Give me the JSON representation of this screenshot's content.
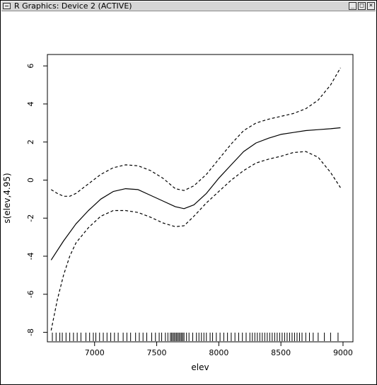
{
  "window": {
    "title": "R Graphics: Device 2 (ACTIVE)",
    "buttons": {
      "minimize": "_",
      "maximize": "□",
      "close": "×"
    }
  },
  "chart_data": {
    "type": "line",
    "title": "",
    "xlabel": "elev",
    "ylabel": "s(elev,4.95)",
    "xlim": [
      6620,
      9080
    ],
    "ylim": [
      -8.5,
      6.6
    ],
    "xticks": [
      7000,
      7500,
      8000,
      8500,
      9000
    ],
    "yticks": [
      -8,
      -6,
      -4,
      -2,
      0,
      2,
      4,
      6
    ],
    "grid": false,
    "series": [
      {
        "style": "solid",
        "points": [
          [
            6650,
            -4.2
          ],
          [
            6750,
            -3.2
          ],
          [
            6850,
            -2.3
          ],
          [
            6950,
            -1.6
          ],
          [
            7050,
            -1.0
          ],
          [
            7150,
            -0.6
          ],
          [
            7250,
            -0.45
          ],
          [
            7350,
            -0.5
          ],
          [
            7450,
            -0.8
          ],
          [
            7550,
            -1.1
          ],
          [
            7650,
            -1.4
          ],
          [
            7720,
            -1.5
          ],
          [
            7800,
            -1.3
          ],
          [
            7900,
            -0.7
          ],
          [
            8000,
            0.1
          ],
          [
            8100,
            0.8
          ],
          [
            8200,
            1.5
          ],
          [
            8300,
            1.95
          ],
          [
            8400,
            2.2
          ],
          [
            8500,
            2.4
          ],
          [
            8600,
            2.5
          ],
          [
            8700,
            2.6
          ],
          [
            8800,
            2.65
          ],
          [
            8900,
            2.7
          ],
          [
            8980,
            2.75
          ]
        ]
      },
      {
        "style": "dashed",
        "points": [
          [
            6650,
            -0.5
          ],
          [
            6700,
            -0.7
          ],
          [
            6750,
            -0.85
          ],
          [
            6800,
            -0.85
          ],
          [
            6850,
            -0.7
          ],
          [
            6950,
            -0.2
          ],
          [
            7050,
            0.3
          ],
          [
            7150,
            0.65
          ],
          [
            7250,
            0.8
          ],
          [
            7350,
            0.75
          ],
          [
            7450,
            0.5
          ],
          [
            7550,
            0.1
          ],
          [
            7650,
            -0.45
          ],
          [
            7720,
            -0.55
          ],
          [
            7800,
            -0.3
          ],
          [
            7900,
            0.3
          ],
          [
            8000,
            1.1
          ],
          [
            8100,
            1.9
          ],
          [
            8200,
            2.6
          ],
          [
            8300,
            3.0
          ],
          [
            8400,
            3.2
          ],
          [
            8500,
            3.35
          ],
          [
            8600,
            3.5
          ],
          [
            8700,
            3.75
          ],
          [
            8800,
            4.2
          ],
          [
            8900,
            5.0
          ],
          [
            8980,
            5.9
          ]
        ]
      },
      {
        "style": "dashed",
        "points": [
          [
            6650,
            -7.9
          ],
          [
            6700,
            -6.3
          ],
          [
            6750,
            -5.0
          ],
          [
            6800,
            -4.0
          ],
          [
            6850,
            -3.3
          ],
          [
            6950,
            -2.5
          ],
          [
            7050,
            -1.9
          ],
          [
            7150,
            -1.6
          ],
          [
            7250,
            -1.6
          ],
          [
            7350,
            -1.7
          ],
          [
            7450,
            -1.95
          ],
          [
            7550,
            -2.25
          ],
          [
            7650,
            -2.45
          ],
          [
            7720,
            -2.4
          ],
          [
            7800,
            -1.9
          ],
          [
            7900,
            -1.2
          ],
          [
            8000,
            -0.6
          ],
          [
            8100,
            0.0
          ],
          [
            8200,
            0.5
          ],
          [
            8300,
            0.9
          ],
          [
            8400,
            1.1
          ],
          [
            8500,
            1.25
          ],
          [
            8600,
            1.45
          ],
          [
            8700,
            1.5
          ],
          [
            8800,
            1.2
          ],
          [
            8900,
            0.4
          ],
          [
            8980,
            -0.4
          ]
        ]
      }
    ],
    "rug": [
      6660,
      6690,
      6720,
      6740,
      6770,
      6800,
      6830,
      6860,
      6890,
      6930,
      6960,
      6990,
      7010,
      7040,
      7070,
      7100,
      7130,
      7160,
      7190,
      7230,
      7260,
      7290,
      7330,
      7360,
      7390,
      7420,
      7460,
      7490,
      7520,
      7540,
      7570,
      7590,
      7610,
      7620,
      7630,
      7640,
      7650,
      7660,
      7670,
      7680,
      7690,
      7700,
      7710,
      7720,
      7740,
      7760,
      7790,
      7820,
      7840,
      7860,
      7880,
      7900,
      7930,
      7950,
      7980,
      8010,
      8040,
      8070,
      8100,
      8130,
      8160,
      8190,
      8220,
      8250,
      8270,
      8290,
      8310,
      8330,
      8350,
      8370,
      8390,
      8410,
      8430,
      8450,
      8470,
      8490,
      8510,
      8530,
      8550,
      8570,
      8590,
      8610,
      8630,
      8650,
      8670,
      8700,
      8730,
      8760,
      8800,
      8850,
      8900,
      8960
    ]
  }
}
